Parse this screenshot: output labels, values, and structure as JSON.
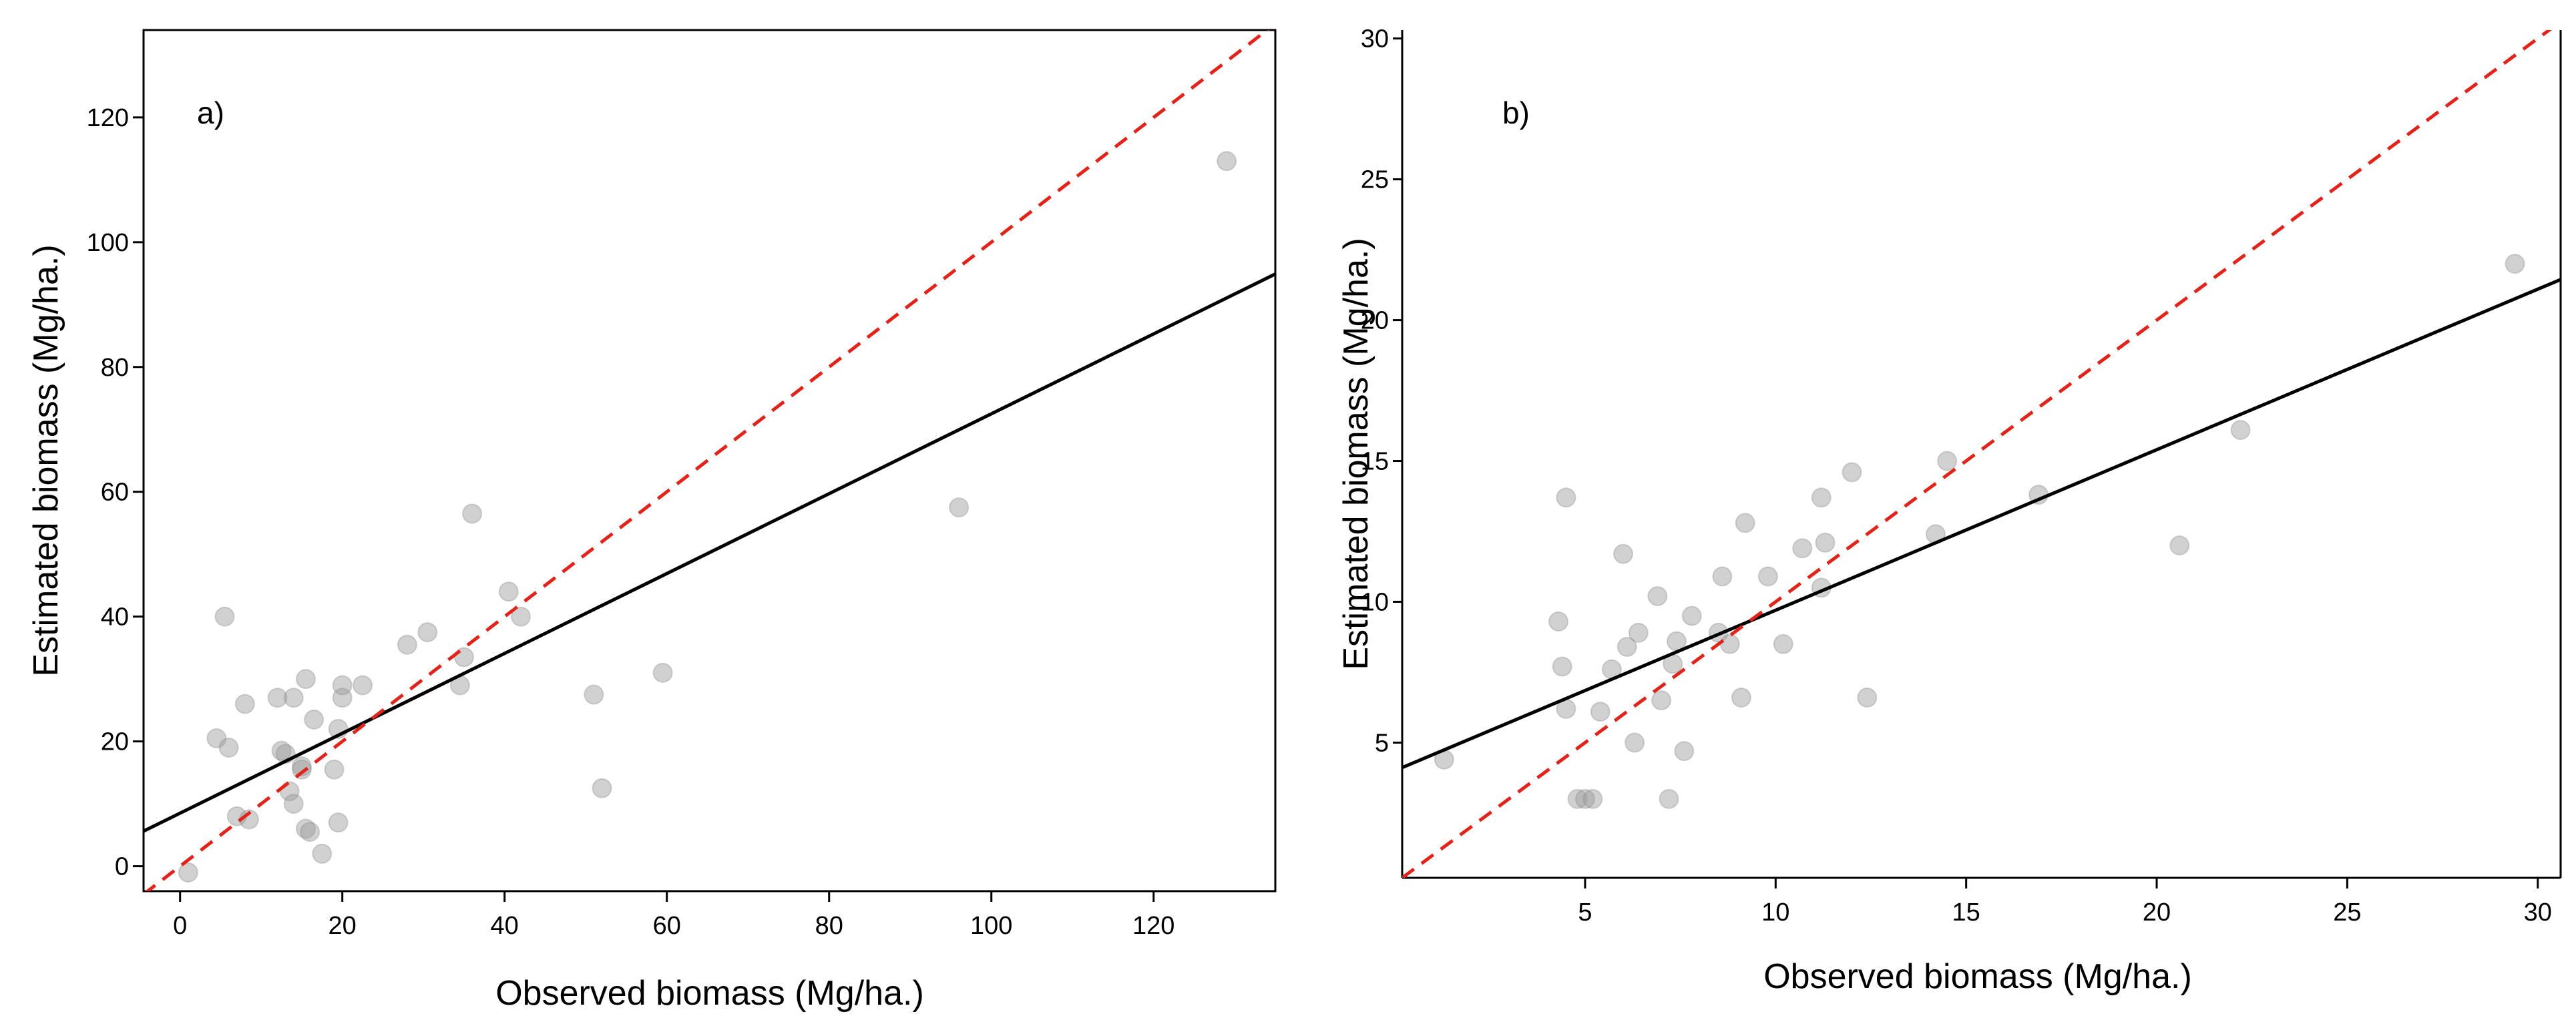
{
  "chart_data": [
    {
      "type": "scatter",
      "panel_label": "a)",
      "xlabel": "Observed biomass (Mg/ha.)",
      "ylabel": "Estimated biomass (Mg/ha.)",
      "xlim": [
        -4.5,
        135
      ],
      "ylim": [
        -4,
        134
      ],
      "xticks": [
        0,
        20,
        40,
        60,
        80,
        100,
        120
      ],
      "yticks": [
        0,
        20,
        40,
        60,
        80,
        100,
        120
      ],
      "fit_line": {
        "intercept": 8.5,
        "slope": 0.64,
        "style": "solid",
        "color": "#000000"
      },
      "reference_line": {
        "intercept": 0,
        "slope": 1,
        "style": "dashed",
        "color": "#e2231a"
      },
      "points": [
        [
          1,
          -1
        ],
        [
          4.5,
          20.5
        ],
        [
          5.5,
          40
        ],
        [
          6,
          19
        ],
        [
          7,
          8
        ],
        [
          8,
          26
        ],
        [
          8.5,
          7.5
        ],
        [
          12,
          27
        ],
        [
          12.5,
          18.5
        ],
        [
          13,
          18
        ],
        [
          13.5,
          12
        ],
        [
          14,
          27
        ],
        [
          14,
          10
        ],
        [
          15,
          16
        ],
        [
          15,
          15.5
        ],
        [
          15.5,
          30
        ],
        [
          15.5,
          6
        ],
        [
          16,
          5.5
        ],
        [
          16.5,
          23.5
        ],
        [
          17.5,
          2
        ],
        [
          19,
          15.5
        ],
        [
          19.5,
          22
        ],
        [
          19.5,
          7
        ],
        [
          20,
          27
        ],
        [
          20,
          29
        ],
        [
          22.5,
          29
        ],
        [
          28,
          35.5
        ],
        [
          30.5,
          37.5
        ],
        [
          34.5,
          29
        ],
        [
          35,
          33.5
        ],
        [
          36,
          56.5
        ],
        [
          40.5,
          44
        ],
        [
          42,
          40
        ],
        [
          51,
          27.5
        ],
        [
          52,
          12.5
        ],
        [
          59.5,
          31
        ],
        [
          96,
          57.5
        ],
        [
          129,
          113
        ]
      ]
    },
    {
      "type": "scatter",
      "panel_label": "b)",
      "xlabel": "Observed biomass (Mg/ha.)",
      "ylabel": "Estimated biomass (Mg/ha.)",
      "xlim": [
        0.2,
        30.6
      ],
      "ylim": [
        0.2,
        30.3
      ],
      "xticks": [
        5,
        10,
        15,
        20,
        25,
        30
      ],
      "yticks": [
        5,
        10,
        15,
        20,
        25,
        30
      ],
      "fit_line": {
        "intercept": 4.0,
        "slope": 0.57,
        "style": "solid",
        "color": "#000000"
      },
      "reference_line": {
        "intercept": 0,
        "slope": 1,
        "style": "dashed",
        "color": "#e2231a"
      },
      "points": [
        [
          1.3,
          4.4
        ],
        [
          4.3,
          9.3
        ],
        [
          4.4,
          7.7
        ],
        [
          4.5,
          13.7
        ],
        [
          4.5,
          6.2
        ],
        [
          4.8,
          3.0
        ],
        [
          5.0,
          3.0
        ],
        [
          5.2,
          3.0
        ],
        [
          5.4,
          6.1
        ],
        [
          5.7,
          7.6
        ],
        [
          6.0,
          11.7
        ],
        [
          6.1,
          8.4
        ],
        [
          6.3,
          5.0
        ],
        [
          6.4,
          8.9
        ],
        [
          6.9,
          10.2
        ],
        [
          7.0,
          6.5
        ],
        [
          7.2,
          3.0
        ],
        [
          7.3,
          7.8
        ],
        [
          7.4,
          8.6
        ],
        [
          7.6,
          4.7
        ],
        [
          7.8,
          9.5
        ],
        [
          8.5,
          8.9
        ],
        [
          8.6,
          10.9
        ],
        [
          8.8,
          8.5
        ],
        [
          9.1,
          6.6
        ],
        [
          9.2,
          12.8
        ],
        [
          9.8,
          10.9
        ],
        [
          10.2,
          8.5
        ],
        [
          10.7,
          11.9
        ],
        [
          11.2,
          13.7
        ],
        [
          11.2,
          10.5
        ],
        [
          11.3,
          12.1
        ],
        [
          12.0,
          14.6
        ],
        [
          12.4,
          6.6
        ],
        [
          14.2,
          12.4
        ],
        [
          14.5,
          15.0
        ],
        [
          16.9,
          13.8
        ],
        [
          20.6,
          12.0
        ],
        [
          22.2,
          16.1
        ],
        [
          29.4,
          22.0
        ]
      ]
    }
  ]
}
